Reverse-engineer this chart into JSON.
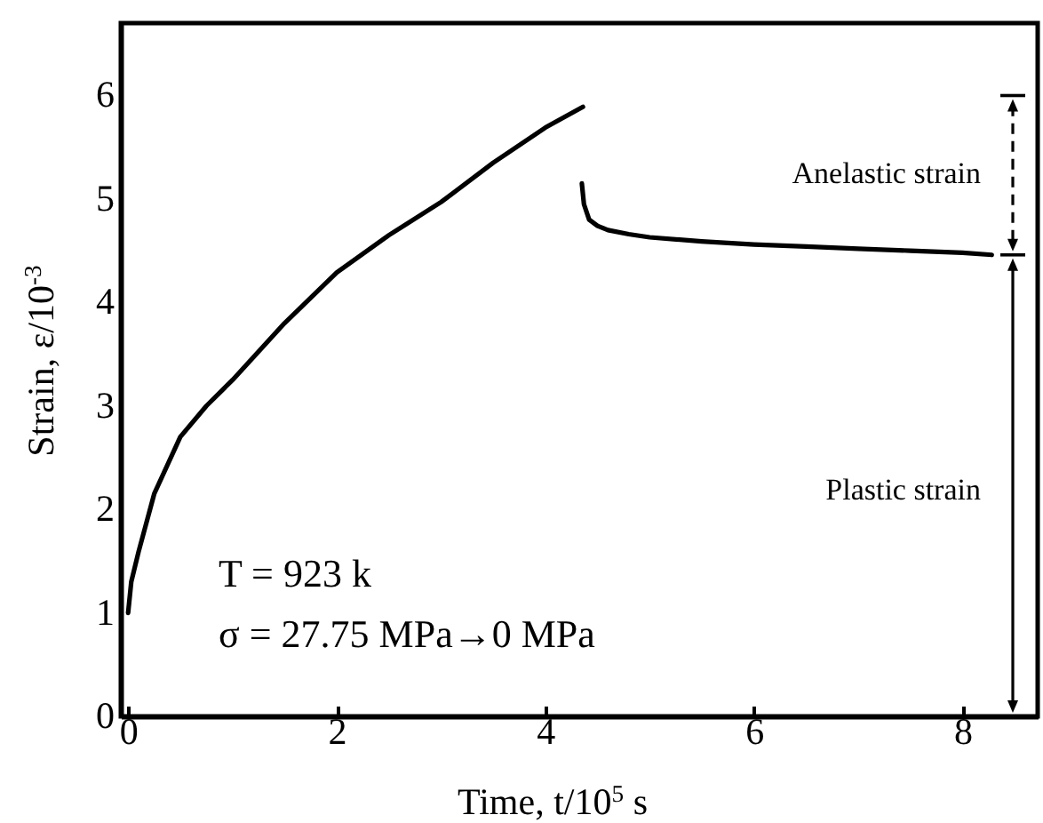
{
  "chart_data": {
    "type": "line",
    "xlabel": "Time, t/10$^{5}$ s",
    "ylabel": "Strain, ε/10$^{-3}$",
    "xlim": [
      -0.07,
      8.72
    ],
    "ylim": [
      0,
      6.7
    ],
    "xticks": [
      0,
      2,
      4,
      6,
      8
    ],
    "yticks": [
      0,
      1,
      2,
      3,
      4,
      5,
      6
    ],
    "series": [
      {
        "color": "#000000",
        "x": [
          0,
          0.03,
          0.1,
          0.25,
          0.5,
          0.75,
          1,
          1.5,
          2,
          2.5,
          3,
          3.5,
          4,
          4.36
        ],
        "values": [
          1.0,
          1.3,
          1.59,
          2.15,
          2.7,
          3.0,
          3.25,
          3.8,
          4.29,
          4.65,
          4.97,
          5.35,
          5.69,
          5.89
        ]
      },
      {
        "color": "#000000",
        "x": [
          4.35,
          4.37,
          4.42,
          4.5,
          4.6,
          4.8,
          5,
          5.5,
          6,
          6.5,
          7,
          7.5,
          8,
          8.28
        ],
        "values": [
          5.15,
          4.95,
          4.8,
          4.74,
          4.7,
          4.66,
          4.63,
          4.59,
          4.56,
          4.54,
          4.52,
          4.5,
          4.48,
          4.46
        ]
      }
    ],
    "annotations": [
      "T = 923 k",
      "σ = 27.75 MPa→0 MPa",
      "Anelastic strain",
      "Plastic strain"
    ]
  }
}
